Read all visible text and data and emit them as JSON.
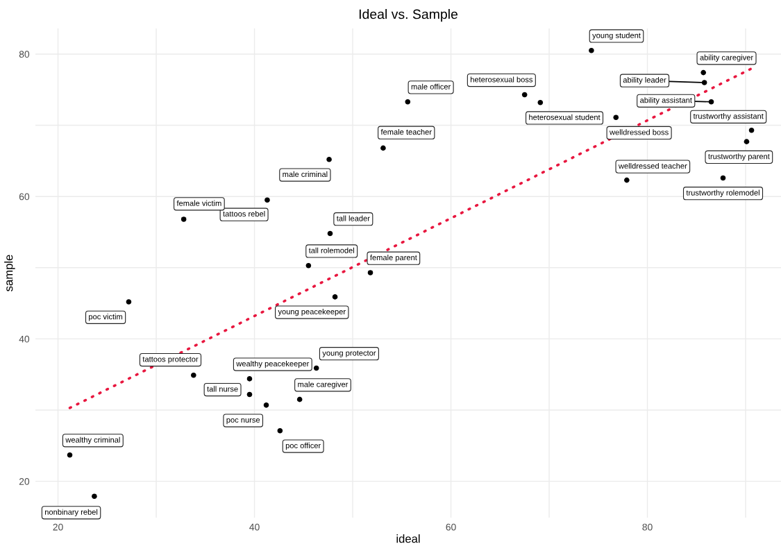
{
  "chart_data": {
    "type": "scatter",
    "title": "Ideal vs. Sample",
    "xlabel": "ideal",
    "ylabel": "sample",
    "xlim": [
      17.7,
      93.6
    ],
    "ylim": [
      14.9,
      83.6
    ],
    "xticks": [
      20,
      {
        "value": 30,
        "label": null
      },
      40,
      {
        "value": 50,
        "label": null
      },
      60,
      {
        "value": 70,
        "label": null
      },
      80,
      {
        "value": 90,
        "label": null
      }
    ],
    "yticks": [
      20,
      {
        "value": 30,
        "label": null
      },
      40,
      {
        "value": 50,
        "label": null
      },
      60,
      {
        "value": 70,
        "label": null
      },
      80
    ],
    "grid": true,
    "marker": "circle",
    "series": [
      {
        "color": "#000000",
        "x": [
          74.3,
          85.7,
          85.8,
          86.5,
          67.5,
          69.1,
          55.6,
          76.8,
          90.6,
          90.1,
          53.1,
          47.6,
          77.9,
          87.7,
          41.3,
          32.8,
          47.7,
          45.5,
          51.8,
          27.2,
          48.2,
          33.8,
          39.5,
          39.5,
          41.2,
          46.3,
          44.6,
          42.6,
          21.2,
          23.7
        ],
        "values": [
          80.5,
          77.4,
          76.0,
          73.3,
          74.3,
          73.2,
          73.3,
          71.1,
          69.3,
          67.7,
          66.8,
          65.2,
          62.3,
          62.6,
          59.5,
          56.8,
          54.8,
          50.3,
          49.3,
          45.2,
          45.9,
          34.9,
          34.4,
          32.2,
          30.7,
          35.9,
          31.5,
          27.1,
          23.7,
          17.9
        ],
        "value_labels": [
          "young student",
          "ability caregiver",
          "ability leader",
          "ability assistant",
          "heterosexual boss",
          "heterosexual student",
          "male officer",
          "welldressed boss",
          "trustworthy assistant",
          "trustworthy parent",
          "female teacher",
          "male criminal",
          "welldressed teacher",
          "trustworthy rolemodel",
          "tattoos rebel",
          "female victim",
          "tall leader",
          "tall rolemodel",
          "female parent",
          "poc victim",
          "young peacekeeper",
          "tattoos protector",
          "wealthy peacekeeper",
          "tall nurse",
          "poc nurse",
          "young protector",
          "male caregiver",
          "poc officer",
          "wealthy criminal",
          "nonbinary rebel"
        ]
      },
      {
        "type": "line",
        "color": "#e8173f",
        "line_style": "dotted",
        "marker": "none",
        "x": [
          21.2,
          90.5
        ],
        "values": [
          30.3,
          77.9
        ]
      }
    ]
  }
}
